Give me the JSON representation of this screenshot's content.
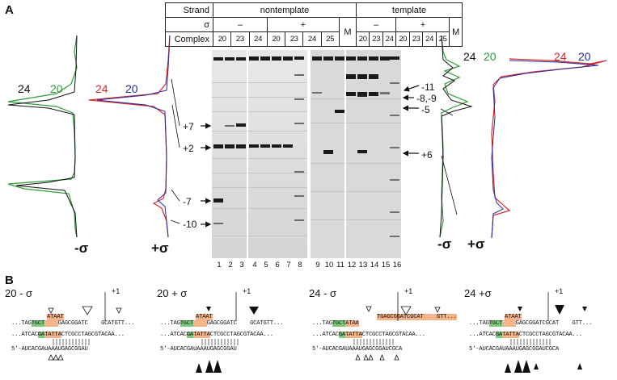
{
  "panelA": {
    "letter": "A",
    "header": {
      "strand_label": "Strand",
      "sigma_label": "σ",
      "complex_label": "Complex",
      "strands": [
        "nontemplate",
        "template"
      ],
      "sigma_states": [
        "–",
        "+",
        "–",
        "+"
      ],
      "complexes_nt_minus": [
        "20",
        "23",
        "24"
      ],
      "complexes_nt_plus": [
        "20",
        "23",
        "24",
        "25"
      ],
      "complexes_t_minus": [
        "20",
        "23",
        "24"
      ],
      "complexes_t_plus": [
        "20",
        "23",
        "24",
        "25"
      ],
      "marker": "M"
    },
    "lane_numbers": [
      "1",
      "2",
      "3",
      "4",
      "5",
      "6",
      "7",
      "8",
      "9",
      "10",
      "11",
      "12",
      "13",
      "14",
      "15",
      "16"
    ],
    "left_band_labels": [
      "+7",
      "+2",
      "-7",
      "-10"
    ],
    "right_band_labels": [
      "-11",
      "-8,-9",
      "-5",
      "+6"
    ],
    "trace_labels": {
      "left_minus": [
        "24",
        "20"
      ],
      "left_plus": [
        "24",
        "20"
      ],
      "right_minus": [
        "24",
        "20"
      ],
      "right_plus": [
        "24",
        "20"
      ]
    },
    "sigma_labels": [
      "-σ",
      "+σ",
      "-σ",
      "+σ"
    ],
    "colors": {
      "c24_minus": "#111111",
      "c20_minus": "#2e9a3a",
      "c24_plus": "#d42a2a",
      "c20_plus": "#2b2b9a",
      "green_box": "#7ec97e",
      "orange_box": "#f6b48a"
    }
  },
  "panelB": {
    "letter": "B",
    "plus1": "+1",
    "conditions": [
      {
        "title": "20 - σ",
        "nt_line": [
          "...TAG",
          "TGCT",
          "    ",
          "ATAAT",
          "GAGCGGATC    GCATGTT..."
        ],
        "t_line": [
          "...ATCAC",
          "GA",
          "TATTA",
          "CTCGCCTAGCGTACAA..."
        ],
        "rna": "5′-AUCACGAUAAAUGAGCGGAU"
      },
      {
        "title": "20 + σ",
        "nt_line": [
          "...TAG",
          "TGCT",
          "    ",
          "ATAAT",
          "GAGCGGATC    GCATGTT..."
        ],
        "t_line": [
          "...ATCAC",
          "GA",
          "TATTA",
          "CTCGCCTAGCGTACAA..."
        ],
        "rna": "5′-AUCACGAUAAAUGAGCGGAU"
      },
      {
        "title": "24 - σ",
        "nt_line": [
          "...TAG",
          "TGCT",
          "",
          "ATAA",
          "TGAGCGGATCGCAT    GTT..."
        ],
        "t_line": [
          "...ATCAC",
          "GA",
          "TATTA",
          "CTCGCCTAGCGTACAA..."
        ],
        "rna": "5′-AUCACGAUAAAUGAGCGGAUCGCA"
      },
      {
        "title": "24 +σ",
        "nt_line": [
          "...TAG",
          "TGCT",
          "    ",
          "ATAAT",
          "GAGCGGATCGCAT    GTT..."
        ],
        "t_line": [
          "...ATCAC",
          "GA",
          "TATTA",
          "CTCGCCTAGCGTACAA..."
        ],
        "rna": "5′-AUCACGAUAAAUGAGCGGAUCGCA"
      }
    ]
  }
}
